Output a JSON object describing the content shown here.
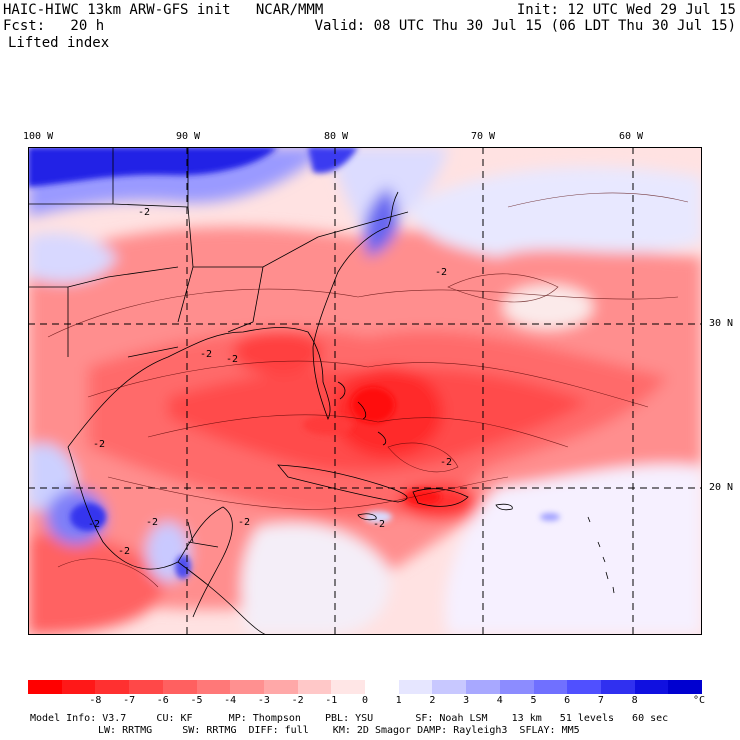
{
  "header": {
    "line1_left": "HAIC-HIWC 13km ARW-GFS init   NCAR/MMM",
    "line2_left": "Fcst:   20 h",
    "init": "Init: 12 UTC Wed 29 Jul 15",
    "valid": "Valid: 08 UTC Thu 30 Jul 15 (06 LDT Thu 30 Jul 15)",
    "field": "Lifted index"
  },
  "axes": {
    "longitudes": [
      "100 W",
      "90 W",
      "80 W",
      "70 W",
      "60 W"
    ],
    "latitudes": [
      "30 N",
      "20 N"
    ]
  },
  "contour_labels": [
    "-2",
    "-2",
    "-2",
    "-2",
    "-2",
    "-2",
    "-2",
    "-2",
    "-2",
    "-2",
    "-2"
  ],
  "colorbar": {
    "ticks": [
      "-8",
      "-7",
      "-6",
      "-5",
      "-4",
      "-3",
      "-2",
      "-1",
      "0",
      "1",
      "2",
      "3",
      "4",
      "5",
      "6",
      "7",
      "8"
    ],
    "unit": "°C",
    "colors": [
      "#ff0000",
      "#ff1818",
      "#ff3030",
      "#ff4848",
      "#ff6060",
      "#ff7878",
      "#ff9090",
      "#ffa8a8",
      "#ffc8c8",
      "#ffe6e6",
      "#ffffff",
      "#e6e6ff",
      "#c8c8ff",
      "#a8a8ff",
      "#8c8cff",
      "#7070ff",
      "#5050ff",
      "#3030f0",
      "#1010e0",
      "#0000d0"
    ]
  },
  "model_info": {
    "line1": "Model Info: V3.7     CU: KF      MP: Thompson    PBL: YSU       SF: Noah LSM    13 km   51 levels   60 sec",
    "line2": "LW: RRTMG     SW: RRTMG  DIFF: full    KM: 2D Smagor DAMP: Rayleigh3  SFLAY: MM5"
  }
}
